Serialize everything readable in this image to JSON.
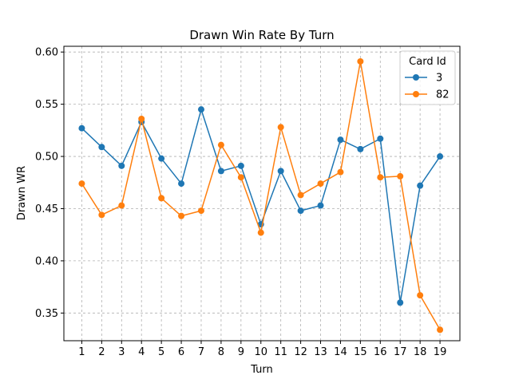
{
  "chart_data": {
    "type": "line",
    "title": "Drawn Win Rate By Turn",
    "xlabel": "Turn",
    "ylabel": "Drawn WR",
    "x": [
      1,
      2,
      3,
      4,
      5,
      6,
      7,
      8,
      9,
      10,
      11,
      12,
      13,
      14,
      15,
      16,
      17,
      18,
      19
    ],
    "xlim": [
      0.1,
      20.0
    ],
    "ylim": [
      0.3235,
      0.6055
    ],
    "yticks": [
      0.35,
      0.4,
      0.45,
      0.5,
      0.55,
      0.6
    ],
    "ytick_labels": [
      "0.35",
      "0.40",
      "0.45",
      "0.50",
      "0.55",
      "0.60"
    ],
    "grid": true,
    "legend": {
      "title": "Card Id",
      "placement": "top-right"
    },
    "series": [
      {
        "name": "3",
        "color": "#1f77b4",
        "values": [
          0.527,
          0.509,
          0.491,
          0.533,
          0.498,
          0.474,
          0.545,
          0.486,
          0.491,
          0.435,
          0.486,
          0.448,
          0.453,
          0.516,
          0.507,
          0.517,
          0.36,
          0.472,
          0.5
        ]
      },
      {
        "name": "82",
        "color": "#ff7f0e",
        "values": [
          0.474,
          0.444,
          0.453,
          0.536,
          0.46,
          0.443,
          0.448,
          0.511,
          0.48,
          0.427,
          0.528,
          0.463,
          0.474,
          0.485,
          0.591,
          0.48,
          0.481,
          0.367,
          0.334
        ]
      }
    ]
  }
}
